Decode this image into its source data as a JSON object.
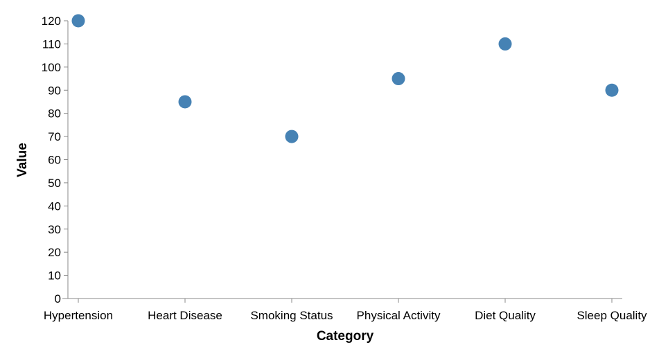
{
  "chart_data": {
    "type": "scatter",
    "categories": [
      "Hypertension",
      "Heart Disease",
      "Smoking Status",
      "Physical Activity",
      "Diet Quality",
      "Sleep Quality"
    ],
    "values": [
      120,
      85,
      70,
      95,
      110,
      90
    ],
    "xlabel": "Category",
    "ylabel": "Value",
    "ylim": [
      0,
      120
    ],
    "yticks": [
      0,
      10,
      20,
      30,
      40,
      50,
      60,
      70,
      80,
      90,
      100,
      110,
      120
    ],
    "grid": false,
    "color": "#4682b4"
  }
}
